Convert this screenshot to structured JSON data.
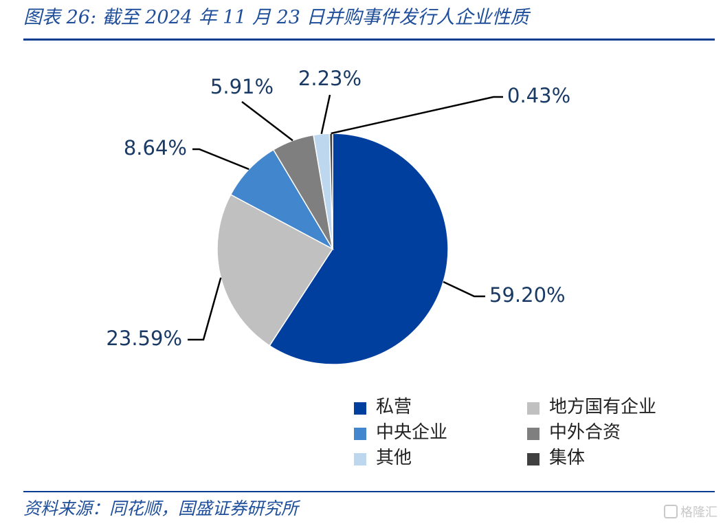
{
  "header": {
    "title": "图表 26:  截至 2024 年 11 月 23 日并购事件发行人企业性质"
  },
  "footer": {
    "source": "资料来源：同花顺，国盛证券研究所",
    "watermark": "格隆汇"
  },
  "chart_data": {
    "type": "pie",
    "title": "图表 26:  截至 2024 年 11 月 23 日并购事件发行人企业性质",
    "start": "12 o'clock",
    "direction": "clockwise",
    "legend_position": "bottom-right",
    "slices": [
      {
        "name": "私营",
        "value": 59.2,
        "label": "59.20%",
        "color": "#003f9e"
      },
      {
        "name": "地方国有企业",
        "value": 23.59,
        "label": "23.59%",
        "color": "#c0c0c0"
      },
      {
        "name": "中央企业",
        "value": 8.64,
        "label": "8.64%",
        "color": "#4287cd"
      },
      {
        "name": "中外合资",
        "value": 5.91,
        "label": "5.91%",
        "color": "#7f7f7f"
      },
      {
        "name": "其他",
        "value": 2.23,
        "label": "2.23%",
        "color": "#bdd7ee"
      },
      {
        "name": "集体",
        "value": 0.43,
        "label": "0.43%",
        "color": "#404040"
      }
    ]
  }
}
